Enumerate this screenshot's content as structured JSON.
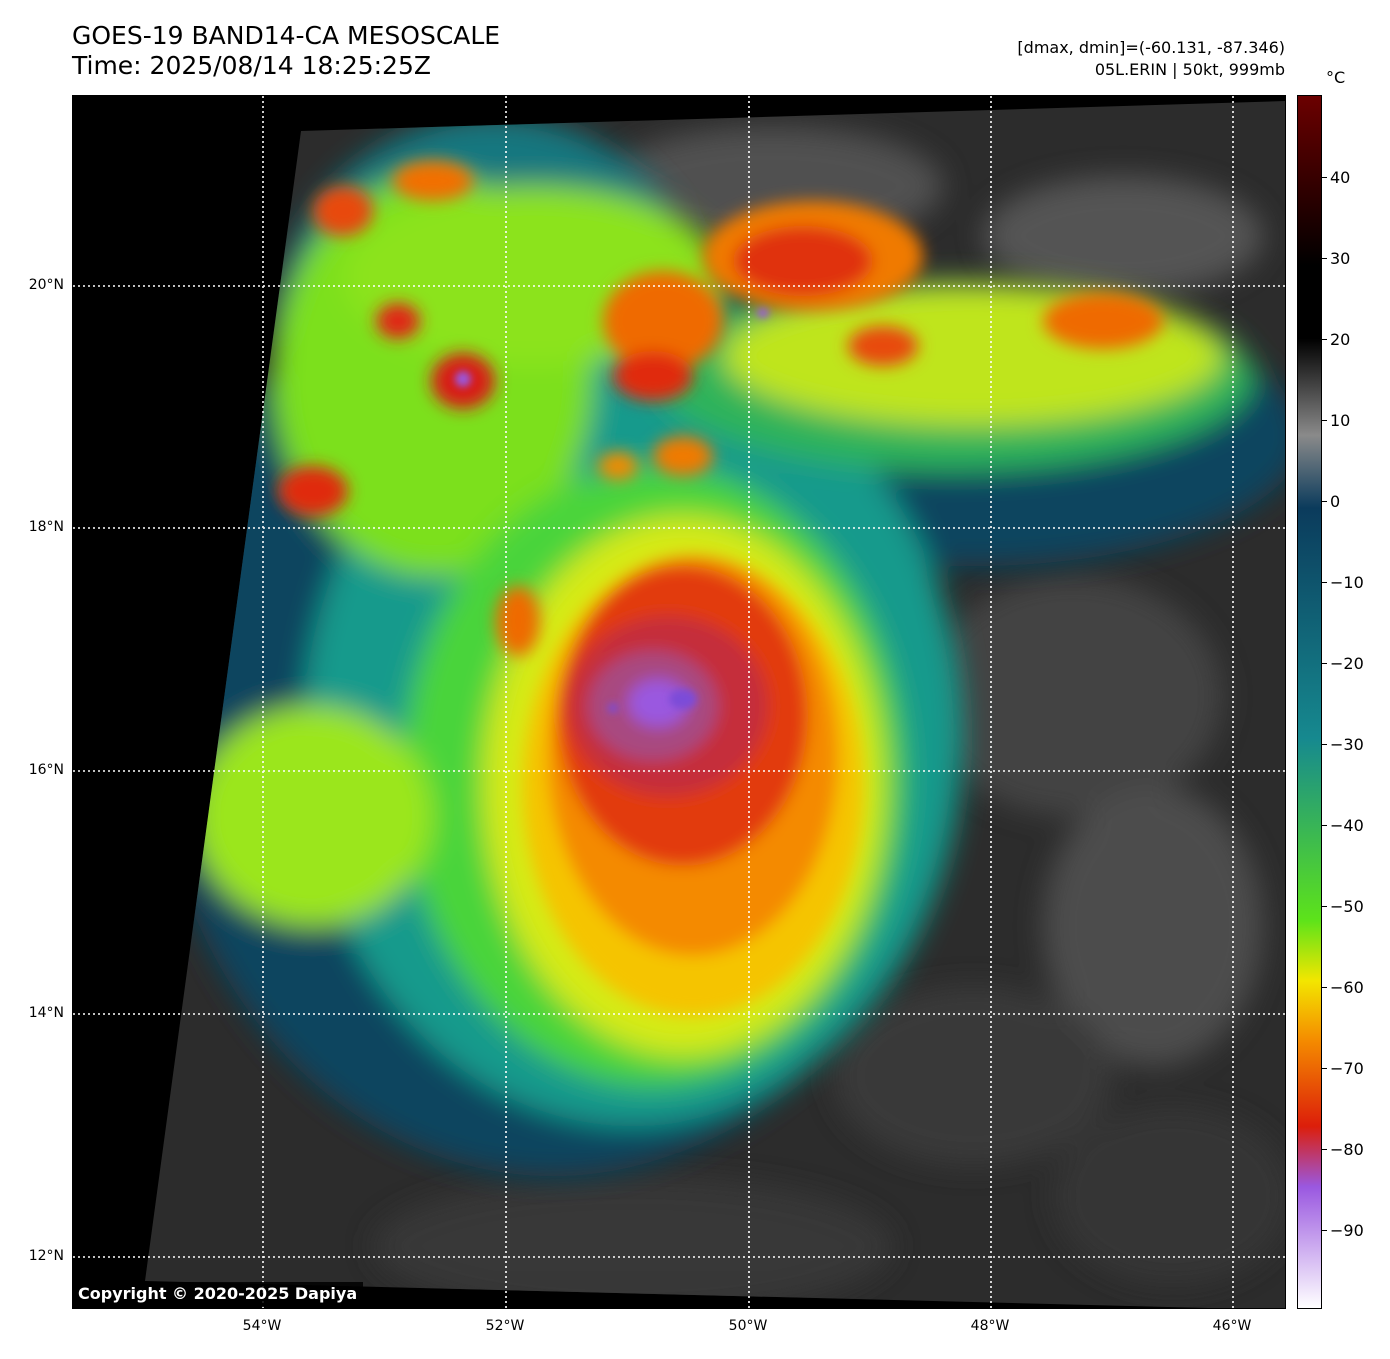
{
  "header": {
    "title_line1": "GOES-19 BAND14-CA MESOSCALE",
    "title_line2": "Time: 2025/08/14 18:25:25Z",
    "info_line1": "[dmax, dmin]=(-60.131, -87.346)",
    "info_line2": "05L.ERIN | 50kt, 999mb"
  },
  "map": {
    "lat_labels": [
      "20°N",
      "18°N",
      "16°N",
      "14°N",
      "12°N"
    ],
    "lon_labels": [
      "54°W",
      "52°W",
      "50°W",
      "48°W",
      "46°W"
    ],
    "copyright": "Copyright © 2020-2025 Dapiya"
  },
  "colorbar": {
    "unit": "°C",
    "tick_labels": [
      "40",
      "30",
      "20",
      "10",
      "0",
      "−10",
      "−20",
      "−30",
      "−40",
      "−50",
      "−60",
      "−70",
      "−80",
      "−90"
    ],
    "colors": {
      "warm_top": "#6b0000",
      "black": "#000000",
      "gray": "#8a8a8a",
      "navy": "#0b3b5c",
      "teal": "#16898f",
      "green": "#5de31a",
      "yellow": "#f3e600",
      "orange": "#f48a00",
      "red": "#dc1e0a",
      "purple": "#9a58e0",
      "lavender": "#ffffff"
    }
  }
}
